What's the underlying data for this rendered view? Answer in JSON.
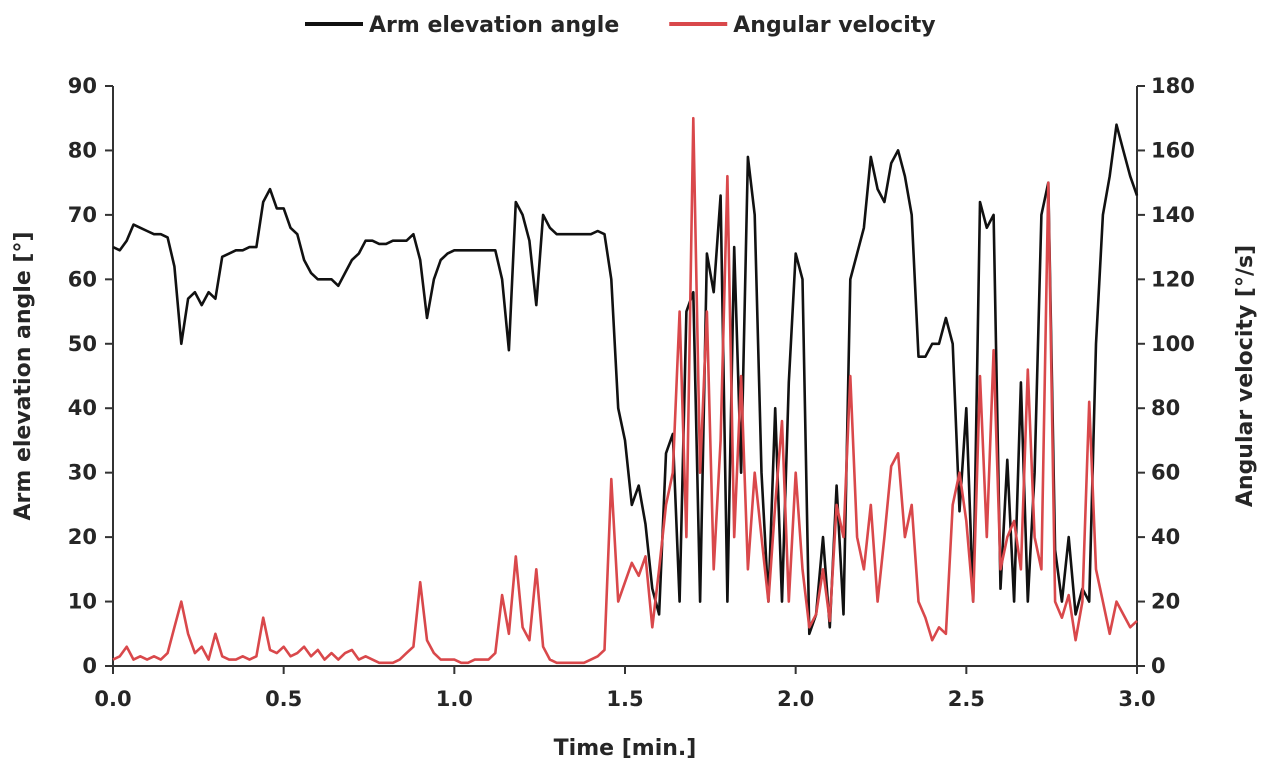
{
  "chart_data": {
    "type": "line",
    "xlabel": "Time [min.]",
    "ylabel": "Arm elevation angle [°]",
    "y2label": "Angular velocity [°/s]",
    "legend": "top",
    "x": [
      0,
      0.02,
      0.04,
      0.06,
      0.08,
      0.1,
      0.12,
      0.14,
      0.16,
      0.18,
      0.2,
      0.22,
      0.24,
      0.26,
      0.28,
      0.3,
      0.32,
      0.34,
      0.36,
      0.38,
      0.4,
      0.42,
      0.44,
      0.46,
      0.48,
      0.5,
      0.52,
      0.54,
      0.56,
      0.58,
      0.6,
      0.62,
      0.64,
      0.66,
      0.68,
      0.7,
      0.72,
      0.74,
      0.76,
      0.78,
      0.8,
      0.82,
      0.84,
      0.86,
      0.88,
      0.9,
      0.92,
      0.94,
      0.96,
      0.98,
      1,
      1.02,
      1.04,
      1.06,
      1.08,
      1.1,
      1.12,
      1.14,
      1.16,
      1.18,
      1.2,
      1.22,
      1.24,
      1.26,
      1.28,
      1.3,
      1.32,
      1.34,
      1.36,
      1.38,
      1.4,
      1.42,
      1.44,
      1.46,
      1.48,
      1.5,
      1.52,
      1.54,
      1.56,
      1.58,
      1.6,
      1.62,
      1.64,
      1.66,
      1.68,
      1.7,
      1.72,
      1.74,
      1.76,
      1.78,
      1.8,
      1.82,
      1.84,
      1.86,
      1.88,
      1.9,
      1.92,
      1.94,
      1.96,
      1.98,
      2,
      2.02,
      2.04,
      2.06,
      2.08,
      2.1,
      2.12,
      2.14,
      2.16,
      2.18,
      2.2,
      2.22,
      2.24,
      2.26,
      2.28,
      2.3,
      2.32,
      2.34,
      2.36,
      2.38,
      2.4,
      2.42,
      2.44,
      2.46,
      2.48,
      2.5,
      2.52,
      2.54,
      2.56,
      2.58,
      2.6,
      2.62,
      2.64,
      2.66,
      2.68,
      2.7,
      2.72,
      2.74,
      2.76,
      2.78,
      2.8,
      2.82,
      2.84,
      2.86,
      2.88,
      2.9,
      2.92,
      2.94,
      2.96,
      2.98,
      3
    ],
    "series": [
      {
        "name": "Arm elevation angle",
        "color": "#111111",
        "axis": "y",
        "values": [
          65,
          64.5,
          66,
          68.5,
          68,
          67.5,
          67,
          67,
          66.5,
          62,
          50,
          57,
          58,
          56,
          58,
          57,
          63.5,
          64,
          64.5,
          64.5,
          65,
          65,
          72,
          74,
          71,
          71,
          68,
          67,
          63,
          61,
          60,
          60,
          60,
          59,
          61,
          63,
          64,
          66,
          66,
          65.5,
          65.5,
          66,
          66,
          66,
          67,
          63,
          54,
          60,
          63,
          64,
          64.5,
          64.5,
          64.5,
          64.5,
          64.5,
          64.5,
          64.5,
          60,
          49,
          72,
          70,
          66,
          56,
          70,
          68,
          67,
          67,
          67,
          67,
          67,
          67,
          67.5,
          67,
          60,
          40,
          35,
          25,
          28,
          22,
          12,
          8,
          33,
          36,
          10,
          55,
          58,
          10,
          64,
          58,
          73,
          10,
          65,
          30,
          79,
          70,
          30,
          10,
          40,
          10,
          44,
          64,
          60,
          5,
          8,
          20,
          6,
          28,
          8,
          60,
          64,
          68,
          79,
          74,
          72,
          78,
          80,
          76,
          70,
          48,
          48,
          50,
          50,
          54,
          50,
          24,
          40,
          10,
          72,
          68,
          70,
          12,
          32,
          10,
          44,
          10,
          30,
          70,
          75,
          18,
          10,
          20,
          8,
          12,
          10,
          50,
          70,
          76,
          84,
          80,
          76,
          73
        ]
      },
      {
        "name": "Angular velocity",
        "color": "#d9484b",
        "axis": "y2",
        "values": [
          2,
          3,
          6,
          2,
          3,
          2,
          3,
          2,
          4,
          12,
          20,
          10,
          4,
          6,
          2,
          10,
          3,
          2,
          2,
          3,
          2,
          3,
          15,
          5,
          4,
          6,
          3,
          4,
          6,
          3,
          5,
          2,
          4,
          2,
          4,
          5,
          2,
          3,
          2,
          1,
          1,
          1,
          2,
          4,
          6,
          26,
          8,
          4,
          2,
          2,
          2,
          1,
          1,
          2,
          2,
          2,
          4,
          22,
          10,
          34,
          12,
          8,
          30,
          6,
          2,
          1,
          1,
          1,
          1,
          1,
          2,
          3,
          5,
          58,
          20,
          26,
          32,
          28,
          34,
          12,
          30,
          50,
          60,
          110,
          40,
          170,
          60,
          110,
          30,
          70,
          152,
          40,
          90,
          30,
          60,
          40,
          20,
          50,
          76,
          20,
          60,
          30,
          12,
          16,
          30,
          14,
          50,
          40,
          90,
          40,
          30,
          50,
          20,
          40,
          62,
          66,
          40,
          50,
          20,
          15,
          8,
          12,
          10,
          50,
          60,
          45,
          20,
          90,
          40,
          98,
          30,
          40,
          45,
          30,
          92,
          40,
          30,
          150,
          20,
          15,
          22,
          8,
          20,
          82,
          30,
          20,
          10,
          20,
          16,
          12,
          14
        ]
      }
    ],
    "xlim": [
      0,
      3
    ],
    "xticks": [
      {
        "value": 0,
        "label": "0.0"
      },
      0.5,
      {
        "value": 1,
        "label": "1.0"
      },
      1.5,
      {
        "value": 2,
        "label": "2.0"
      },
      2.5,
      {
        "value": 3,
        "label": "3.0"
      }
    ],
    "ylim": [
      0,
      90
    ],
    "yticks": [
      0,
      10,
      20,
      30,
      40,
      50,
      60,
      70,
      80,
      90
    ],
    "y2lim": [
      0,
      180
    ],
    "y2ticks": [
      0,
      20,
      40,
      60,
      80,
      100,
      120,
      140,
      160,
      180
    ]
  }
}
